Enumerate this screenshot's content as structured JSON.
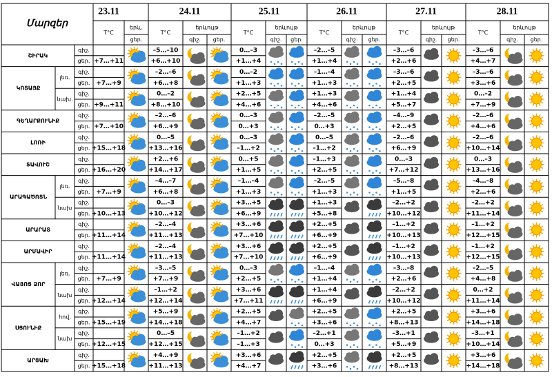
{
  "header": {
    "title": "Մարզեր",
    "dates": [
      "23.11",
      "24.11",
      "25.11",
      "26.11",
      "27.11",
      "28.11"
    ],
    "temp": "T°C",
    "phen_short": "երև.",
    "phen": "երևույթ",
    "night": "գիշ.",
    "day": "ցեր."
  },
  "regions": [
    {
      "name": "ՇԻՐԱԿ",
      "rows": [
        {
          "labels": [
            "գիշ.",
            "ցեր."
          ],
          "day0": "+7…+11",
          "temps": [
            [
              "–5…–10",
              "+6…+10"
            ],
            [
              "0…–3",
              "+1…+4"
            ],
            [
              "–2…–5",
              "+1…+4"
            ],
            [
              "–3…–6",
              "+2…+6"
            ],
            [
              "–3…–6",
              "+4…+7"
            ]
          ]
        }
      ]
    },
    {
      "name": "ԿՈՏԱՅՔ",
      "rows": [
        {
          "sub": "լեռ.",
          "labels": [
            "գիշ.",
            "ցեր."
          ],
          "day0": "+7…+9",
          "temps": [
            [
              "–2…–6",
              "+6…+8"
            ],
            [
              "0…–2",
              "+1…+3"
            ],
            [
              "–1…–4",
              "+1…+3"
            ],
            [
              "–3…–6",
              "+2…+5"
            ],
            [
              "–3…–6",
              "+3…+6"
            ]
          ]
        },
        {
          "sub": "նախ.",
          "labels": [
            "գիշ.",
            "ցեր."
          ],
          "day0": "+9…+11",
          "temps": [
            [
              "0…–2",
              "+8…+10"
            ],
            [
              "+2…+5",
              "+4…+6"
            ],
            [
              "+1…+3",
              "+4…+6"
            ],
            [
              "+1…+4",
              "+5…+7"
            ],
            [
              "0…–2",
              "+7…+9"
            ]
          ]
        }
      ]
    },
    {
      "name": "ԳԵՂԱՐՔՈՒՆԻՔ",
      "rows": [
        {
          "labels": [
            "գիշ.",
            "ցեր."
          ],
          "day0": "+7…+10",
          "temps": [
            [
              "–2…–6",
              "+6…+9"
            ],
            [
              "0…–3",
              "0…+3"
            ],
            [
              "–2…–5",
              "0…+3"
            ],
            [
              "–4…–9",
              "+2…+5"
            ],
            [
              "–2…–6",
              "+4…+6"
            ]
          ]
        }
      ]
    },
    {
      "name": "ԼՈՌԻ",
      "rows": [
        {
          "labels": [
            "գիշ.",
            "ցեր."
          ],
          "day0": "+15…+18",
          "temps": [
            [
              "0…–5",
              "+13…+16"
            ],
            [
              "0…–3",
              "–1…+2"
            ],
            [
              "0…–5",
              "–1…+2"
            ],
            [
              "–2…–6",
              "+6…+9"
            ],
            [
              "–2…–6",
              "+10…+14"
            ]
          ]
        }
      ]
    },
    {
      "name": "ՏԱՎՈՒՇ",
      "rows": [
        {
          "labels": [
            "գիշ.",
            "ցեր."
          ],
          "day0": "+16…+20",
          "temps": [
            [
              "+2…+6",
              "+14…+17"
            ],
            [
              "0…+5",
              "+1…+5"
            ],
            [
              "–1…+3",
              "+2…+5"
            ],
            [
              "0…–3",
              "+7…+12"
            ],
            [
              "0…–3",
              "+13…+16"
            ]
          ]
        }
      ]
    },
    {
      "name": "ԱՐԱԳԱԾՈՏՆ",
      "rows": [
        {
          "sub": "լեռ.",
          "labels": [
            "գիշ.",
            "ցեր."
          ],
          "day0": "+7…+9",
          "temps": [
            [
              "–4…–7",
              "+6…+8"
            ],
            [
              "–1…–4",
              "+1…+3"
            ],
            [
              "–2…–5",
              "+1…+3"
            ],
            [
              "–5…–8",
              "+1…+5"
            ],
            [
              "–4…–8",
              "+2…+6"
            ]
          ]
        },
        {
          "sub": "նախ",
          "labels": [
            "գիշ.",
            "ցեր."
          ],
          "day0": "+10…+13",
          "temps": [
            [
              "0…–3",
              "+10…+12"
            ],
            [
              "+3…+5",
              "+6…+9"
            ],
            [
              "+1…+3",
              "+5…+8"
            ],
            [
              "–2…+2",
              "+10…+12"
            ],
            [
              "–2…+2",
              "+11…+14"
            ]
          ]
        }
      ]
    },
    {
      "name": "ԱՐԱՐԱՏ",
      "rows": [
        {
          "labels": [
            "գիշ.",
            "ցեր."
          ],
          "day0": "+11…+14",
          "temps": [
            [
              "–2…–4",
              "+11…+13"
            ],
            [
              "+3…+6",
              "+7…+10"
            ],
            [
              "+2…+5",
              "+6…+9"
            ],
            [
              "–1…+2",
              "+10…+13"
            ],
            [
              "–1…+2",
              "+12…+15"
            ]
          ]
        }
      ]
    },
    {
      "name": "ԱՐՄԱՎԻՐ",
      "rows": [
        {
          "labels": [
            "գիշ.",
            "ցեր."
          ],
          "day0": "+11…+14",
          "temps": [
            [
              "–2…–4",
              "+11…+13"
            ],
            [
              "+3…+6",
              "+7…+10"
            ],
            [
              "+2…+5",
              "+6…+9"
            ],
            [
              "–1…+2",
              "+10…+13"
            ],
            [
              "–1…+2",
              "+12…+15"
            ]
          ]
        }
      ]
    },
    {
      "name": "ՎԱՅՈՑ ՁՈՐ",
      "rows": [
        {
          "sub": "լեռ.",
          "labels": [
            "գիշ.",
            "ցեր."
          ],
          "day0": "+7…+9",
          "temps": [
            [
              "–3…–5",
              "+7…+9"
            ],
            [
              "0…–3",
              "+2…+5"
            ],
            [
              "–1…–4",
              "+1…+4"
            ],
            [
              "–3…–8",
              "+2…+6"
            ],
            [
              "–2…–5",
              "+4…+8"
            ]
          ]
        },
        {
          "sub": "նախ",
          "labels": [
            "գիշ.",
            "ցեր."
          ],
          "day0": "+12…+14",
          "temps": [
            [
              "–1…+2",
              "+12…+14"
            ],
            [
              "+3…+6",
              "+7…+11"
            ],
            [
              "+1…+4",
              "+6…+9"
            ],
            [
              "–2…+2",
              "+10…+12"
            ],
            [
              "0…+2",
              "+11…+14"
            ]
          ]
        }
      ]
    },
    {
      "name": "ՍՅՈՒՆԻՔ",
      "rows": [
        {
          "sub": "հով.",
          "labels": [
            "գիշ.",
            "ցեր."
          ],
          "day0": "+15…+19",
          "temps": [
            [
              "+5…+9",
              "+14…+18"
            ],
            [
              "+2…+5",
              "+4…+7"
            ],
            [
              "+2…+5",
              "+3…+6"
            ],
            [
              "+2…+5",
              "+8…+13"
            ],
            [
              "+3…+6",
              "+14…+18"
            ]
          ]
        },
        {
          "sub": "նախ",
          "labels": [
            "գիշ.",
            "ցեր."
          ],
          "day0": "+12…+15",
          "temps": [
            [
              "0…–5",
              "+12…+15"
            ],
            [
              "–1…+2",
              "–1…+3"
            ],
            [
              "–2…+1",
              "0…+3"
            ],
            [
              "–3…+1",
              "+5…+9"
            ],
            [
              "–3…+1",
              "+10…+14"
            ]
          ]
        }
      ]
    },
    {
      "name": "ԱՐՑԱԽ",
      "rows": [
        {
          "labels": [
            "գիշ.",
            "ցեր."
          ],
          "day0": "+15…+18",
          "temps": [
            [
              "+4…+9",
              "+11…+13"
            ],
            [
              "+3…+6",
              "+4…+7"
            ],
            [
              "+2…+5",
              "+3…+6"
            ],
            [
              "+2…+5",
              "+8…+13"
            ],
            [
              "+3…+6",
              "+14…+18"
            ]
          ]
        }
      ]
    }
  ]
}
